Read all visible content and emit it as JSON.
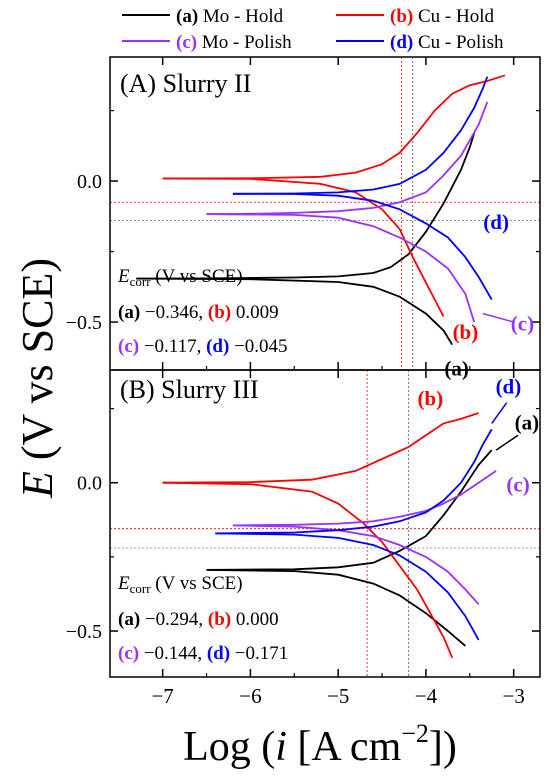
{
  "x_axis": {
    "label_prefix": "Log (",
    "label_i": "i",
    "label_mid": " [A cm",
    "label_sup": "−2",
    "label_suffix": "])",
    "range": [
      -7.6,
      -2.7
    ],
    "ticks": [
      -7,
      -6,
      -5,
      -4,
      -3
    ],
    "tick_labels": [
      "−7",
      "−6",
      "−5",
      "−4",
      "−3"
    ]
  },
  "y_axis": {
    "label_E": "E",
    "label_rest": " (V vs SCE)"
  },
  "legend": {
    "a": {
      "letter": "(a)",
      "text": " Mo - Hold",
      "color": "#000000"
    },
    "b": {
      "letter": "(b)",
      "text": " Cu - Hold",
      "color": "#ff0000"
    },
    "c": {
      "letter": "(c)",
      "text": " Mo - Polish",
      "color": "#9b30ff"
    },
    "d": {
      "letter": "(d)",
      "text": " Cu - Polish",
      "color": "#0000ff"
    }
  },
  "colors": {
    "a": "#000000",
    "b": "#ff0000",
    "c": "#9b30ff",
    "d": "#0000ff"
  },
  "chart_data": [
    {
      "type": "line",
      "panel": "A",
      "title": "(A) Slurry II",
      "ylim": [
        -0.67,
        0.44
      ],
      "yticks": [
        0.0,
        -0.5
      ],
      "ytick_labels": [
        "0.0",
        "−0.5"
      ],
      "ecorr_title_E": "E",
      "ecorr_title_sub": "corr",
      "ecorr_title_rest": " (V vs SCE)",
      "ecorr_values": [
        {
          "letter": "(a)",
          "value": "−0.346",
          "sep": ", "
        },
        {
          "letter": "(b)",
          "value": "0.009",
          "sep": ""
        },
        {
          "letter": "(c)",
          "value": "−0.117",
          "sep": ", "
        },
        {
          "letter": "(d)",
          "value": "−0.045",
          "sep": ""
        }
      ],
      "reference_lines": {
        "red_vertical_x": -4.28,
        "gray_vertical_x": -4.15,
        "red_horizontal_y": -0.075,
        "gray_horizontal_y": -0.14
      },
      "series": [
        {
          "key": "a",
          "name": "Mo - Hold",
          "ecorr": -0.346,
          "anodic": [
            [
              -7.3,
              -0.346
            ],
            [
              -6.5,
              -0.345
            ],
            [
              -5.5,
              -0.342
            ],
            [
              -5.0,
              -0.338
            ],
            [
              -4.6,
              -0.326
            ],
            [
              -4.4,
              -0.305
            ],
            [
              -4.2,
              -0.26
            ],
            [
              -4.0,
              -0.18
            ],
            [
              -3.8,
              -0.08
            ],
            [
              -3.6,
              0.04
            ],
            [
              -3.5,
              0.12
            ],
            [
              -3.45,
              0.17
            ]
          ],
          "cathodic": [
            [
              -7.3,
              -0.346
            ],
            [
              -6.0,
              -0.348
            ],
            [
              -5.0,
              -0.358
            ],
            [
              -4.6,
              -0.375
            ],
            [
              -4.3,
              -0.41
            ],
            [
              -4.0,
              -0.47
            ],
            [
              -3.8,
              -0.53
            ],
            [
              -3.7,
              -0.58
            ]
          ]
        },
        {
          "key": "b",
          "name": "Cu - Hold",
          "ecorr": 0.009,
          "anodic": [
            [
              -7.0,
              0.009
            ],
            [
              -6.0,
              0.01
            ],
            [
              -5.2,
              0.015
            ],
            [
              -4.8,
              0.03
            ],
            [
              -4.5,
              0.06
            ],
            [
              -4.3,
              0.1
            ],
            [
              -4.1,
              0.17
            ],
            [
              -3.9,
              0.25
            ],
            [
              -3.7,
              0.31
            ],
            [
              -3.5,
              0.34
            ],
            [
              -3.3,
              0.355
            ],
            [
              -3.1,
              0.375
            ]
          ],
          "cathodic": [
            [
              -7.0,
              0.009
            ],
            [
              -6.0,
              0.008
            ],
            [
              -5.2,
              -0.01
            ],
            [
              -4.8,
              -0.04
            ],
            [
              -4.5,
              -0.1
            ],
            [
              -4.3,
              -0.17
            ],
            [
              -4.15,
              -0.27
            ],
            [
              -4.0,
              -0.36
            ],
            [
              -3.9,
              -0.42
            ],
            [
              -3.8,
              -0.48
            ]
          ]
        },
        {
          "key": "c",
          "name": "Mo - Polish",
          "ecorr": -0.117,
          "anodic": [
            [
              -6.5,
              -0.117
            ],
            [
              -6.0,
              -0.116
            ],
            [
              -5.5,
              -0.113
            ],
            [
              -5.0,
              -0.107
            ],
            [
              -4.6,
              -0.095
            ],
            [
              -4.3,
              -0.075
            ],
            [
              -4.0,
              -0.04
            ],
            [
              -3.8,
              0.02
            ],
            [
              -3.6,
              0.09
            ],
            [
              -3.4,
              0.2
            ],
            [
              -3.3,
              0.28
            ]
          ],
          "cathodic": [
            [
              -6.5,
              -0.117
            ],
            [
              -5.5,
              -0.12
            ],
            [
              -5.0,
              -0.13
            ],
            [
              -4.6,
              -0.16
            ],
            [
              -4.3,
              -0.2
            ],
            [
              -4.0,
              -0.25
            ],
            [
              -3.75,
              -0.31
            ],
            [
              -3.55,
              -0.4
            ],
            [
              -3.45,
              -0.5
            ]
          ]
        },
        {
          "key": "d",
          "name": "Cu - Polish",
          "ecorr": -0.045,
          "anodic": [
            [
              -6.2,
              -0.045
            ],
            [
              -5.5,
              -0.044
            ],
            [
              -5.0,
              -0.04
            ],
            [
              -4.6,
              -0.03
            ],
            [
              -4.3,
              -0.01
            ],
            [
              -4.0,
              0.04
            ],
            [
              -3.8,
              0.1
            ],
            [
              -3.6,
              0.18
            ],
            [
              -3.45,
              0.26
            ],
            [
              -3.35,
              0.33
            ],
            [
              -3.3,
              0.37
            ]
          ],
          "cathodic": [
            [
              -6.2,
              -0.045
            ],
            [
              -5.5,
              -0.046
            ],
            [
              -5.0,
              -0.052
            ],
            [
              -4.6,
              -0.07
            ],
            [
              -4.3,
              -0.1
            ],
            [
              -4.0,
              -0.15
            ],
            [
              -3.75,
              -0.2
            ],
            [
              -3.55,
              -0.27
            ],
            [
              -3.4,
              -0.34
            ],
            [
              -3.25,
              -0.42
            ]
          ]
        }
      ]
    },
    {
      "type": "line",
      "panel": "B",
      "title": "(B) Slurry III",
      "ylim": [
        -0.655,
        0.38
      ],
      "yticks": [
        0.0,
        -0.5
      ],
      "ytick_labels": [
        "0.0",
        "−0.5"
      ],
      "ecorr_title_E": "E",
      "ecorr_title_sub": "corr",
      "ecorr_title_rest": " (V vs SCE)",
      "ecorr_values": [
        {
          "letter": "(a)",
          "value": "−0.294",
          "sep": ", "
        },
        {
          "letter": "(b)",
          "value": "0.000",
          "sep": ""
        },
        {
          "letter": "(c)",
          "value": "−0.144",
          "sep": ", "
        },
        {
          "letter": "(d)",
          "value": "−0.171",
          "sep": ""
        }
      ],
      "reference_lines": {
        "red_vertical_x": -4.67,
        "gray_vertical_x": -4.2,
        "red_horizontal_y": -0.155,
        "gray_horizontal_y": -0.22
      },
      "series": [
        {
          "key": "a",
          "name": "Mo - Hold",
          "ecorr": -0.294,
          "anodic": [
            [
              -6.5,
              -0.294
            ],
            [
              -5.5,
              -0.292
            ],
            [
              -5.0,
              -0.285
            ],
            [
              -4.6,
              -0.27
            ],
            [
              -4.3,
              -0.23
            ],
            [
              -4.0,
              -0.18
            ],
            [
              -3.8,
              -0.11
            ],
            [
              -3.6,
              -0.03
            ],
            [
              -3.4,
              0.06
            ],
            [
              -3.25,
              0.11
            ]
          ],
          "cathodic": [
            [
              -6.5,
              -0.294
            ],
            [
              -5.5,
              -0.298
            ],
            [
              -5.0,
              -0.31
            ],
            [
              -4.6,
              -0.34
            ],
            [
              -4.3,
              -0.38
            ],
            [
              -4.0,
              -0.44
            ],
            [
              -3.75,
              -0.5
            ],
            [
              -3.55,
              -0.55
            ]
          ]
        },
        {
          "key": "b",
          "name": "Cu - Hold",
          "ecorr": 0.0,
          "anodic": [
            [
              -7.0,
              0.0
            ],
            [
              -6.0,
              0.002
            ],
            [
              -5.3,
              0.01
            ],
            [
              -4.8,
              0.04
            ],
            [
              -4.5,
              0.08
            ],
            [
              -4.2,
              0.12
            ],
            [
              -4.0,
              0.16
            ],
            [
              -3.8,
              0.2
            ],
            [
              -3.6,
              0.215
            ],
            [
              -3.4,
              0.235
            ]
          ],
          "cathodic": [
            [
              -7.0,
              0.0
            ],
            [
              -6.0,
              -0.005
            ],
            [
              -5.3,
              -0.03
            ],
            [
              -5.0,
              -0.07
            ],
            [
              -4.7,
              -0.14
            ],
            [
              -4.5,
              -0.2
            ],
            [
              -4.3,
              -0.28
            ],
            [
              -4.1,
              -0.36
            ],
            [
              -3.95,
              -0.44
            ],
            [
              -3.8,
              -0.52
            ],
            [
              -3.7,
              -0.59
            ]
          ]
        },
        {
          "key": "c",
          "name": "Mo - Polish",
          "ecorr": -0.144,
          "anodic": [
            [
              -6.2,
              -0.144
            ],
            [
              -5.5,
              -0.142
            ],
            [
              -5.0,
              -0.138
            ],
            [
              -4.6,
              -0.13
            ],
            [
              -4.3,
              -0.115
            ],
            [
              -4.0,
              -0.095
            ],
            [
              -3.8,
              -0.07
            ],
            [
              -3.6,
              -0.04
            ],
            [
              -3.4,
              0.0
            ],
            [
              -3.2,
              0.04
            ]
          ],
          "cathodic": [
            [
              -6.2,
              -0.144
            ],
            [
              -5.5,
              -0.148
            ],
            [
              -5.0,
              -0.16
            ],
            [
              -4.6,
              -0.18
            ],
            [
              -4.3,
              -0.21
            ],
            [
              -4.0,
              -0.25
            ],
            [
              -3.75,
              -0.3
            ],
            [
              -3.55,
              -0.36
            ],
            [
              -3.4,
              -0.41
            ]
          ]
        },
        {
          "key": "d",
          "name": "Cu - Polish",
          "ecorr": -0.171,
          "anodic": [
            [
              -6.4,
              -0.171
            ],
            [
              -5.5,
              -0.168
            ],
            [
              -5.0,
              -0.16
            ],
            [
              -4.6,
              -0.148
            ],
            [
              -4.3,
              -0.13
            ],
            [
              -4.0,
              -0.1
            ],
            [
              -3.8,
              -0.06
            ],
            [
              -3.6,
              0.0
            ],
            [
              -3.45,
              0.07
            ],
            [
              -3.35,
              0.13
            ],
            [
              -3.25,
              0.18
            ]
          ],
          "cathodic": [
            [
              -6.4,
              -0.171
            ],
            [
              -5.5,
              -0.175
            ],
            [
              -5.0,
              -0.186
            ],
            [
              -4.6,
              -0.21
            ],
            [
              -4.3,
              -0.245
            ],
            [
              -4.0,
              -0.3
            ],
            [
              -3.75,
              -0.37
            ],
            [
              -3.55,
              -0.45
            ],
            [
              -3.4,
              -0.53
            ]
          ]
        }
      ]
    }
  ],
  "annotations": [
    {
      "panel": 0,
      "key": "d",
      "text": "(d)",
      "x": -3.2,
      "y": -0.17
    },
    {
      "panel": 0,
      "key": "c",
      "text": "(c)",
      "x": -2.9,
      "y": -0.53
    },
    {
      "panel": 0,
      "key": "b",
      "text": "(b)",
      "x": -3.55,
      "y": -0.56
    },
    {
      "panel": 0,
      "key": "a",
      "text": "(a)",
      "x": -3.65,
      "y": -0.69
    },
    {
      "panel": 1,
      "key": "b",
      "text": "(b)",
      "x": -3.95,
      "y": 0.26
    },
    {
      "panel": 1,
      "key": "d",
      "text": "(d)",
      "x": -3.06,
      "y": 0.3
    },
    {
      "panel": 1,
      "key": "a",
      "text": "(a)",
      "x": -2.85,
      "y": 0.18
    },
    {
      "panel": 1,
      "key": "c",
      "text": "(c)",
      "x": -2.95,
      "y": -0.03
    }
  ]
}
